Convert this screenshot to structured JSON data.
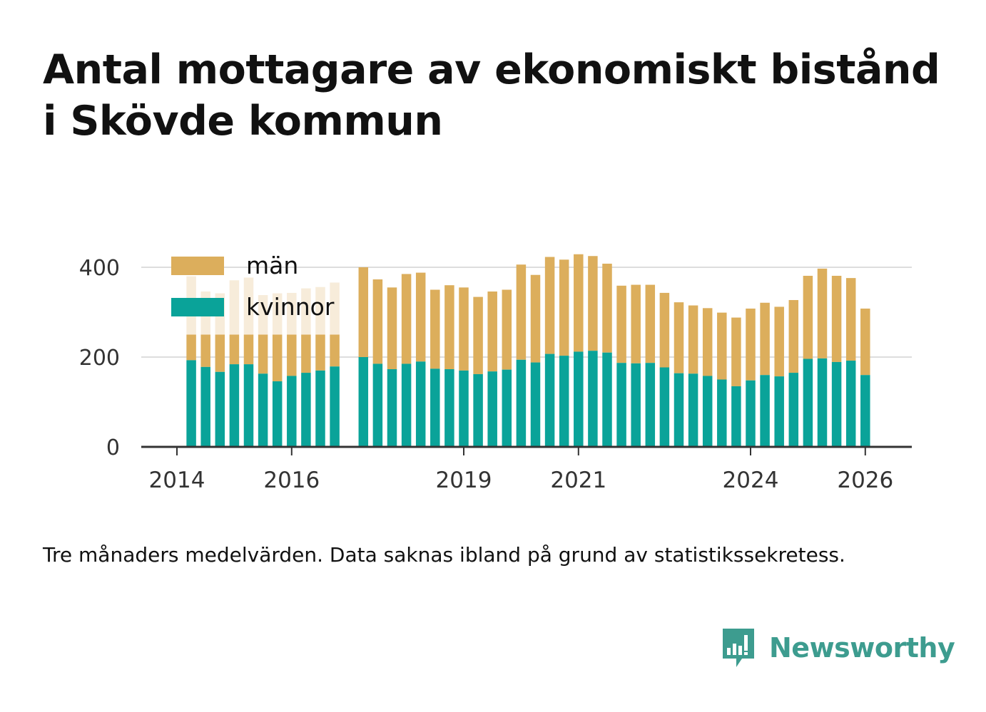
{
  "title": "Antal mottagare av ekonomiskt bistånd i Skövde kommun",
  "note": "Tre månaders medelvärden. Data saknas ibland på grund av statistikssekretess.",
  "brand": {
    "name": "Newsworthy",
    "icon": "newsworthy-logo-icon"
  },
  "colors": {
    "man": "#dcae5c",
    "kvinnor": "#0aa399",
    "faded": "#f7ecda",
    "grid": "#dddddd",
    "axis": "#333333"
  },
  "chart_data": {
    "type": "bar",
    "stacked": true,
    "title": "Antal mottagare av ekonomiskt bistånd i Skövde kommun",
    "xlabel": "",
    "ylabel": "",
    "ylim": [
      0,
      400
    ],
    "yticks": [
      0,
      200,
      400
    ],
    "xlim": [
      2014.0,
      2026.5
    ],
    "xticks": [
      2014,
      2016,
      2019,
      2021,
      2024,
      2026
    ],
    "legend": {
      "position": "top-left",
      "entries": [
        "män",
        "kvinnor"
      ]
    },
    "x": [
      2014.25,
      2014.5,
      2014.75,
      2015.0,
      2015.25,
      2015.5,
      2015.75,
      2016.0,
      2016.25,
      2016.5,
      2016.75,
      2017.25,
      2017.5,
      2017.75,
      2018.0,
      2018.25,
      2018.5,
      2018.75,
      2019.0,
      2019.25,
      2019.5,
      2019.75,
      2020.0,
      2020.25,
      2020.5,
      2020.75,
      2021.0,
      2021.25,
      2021.5,
      2021.75,
      2022.0,
      2022.25,
      2022.5,
      2022.75,
      2023.0,
      2023.25,
      2023.5,
      2023.75,
      2024.0,
      2024.25,
      2024.5,
      2024.75,
      2025.0,
      2025.25,
      2025.5,
      2025.75,
      2026.0
    ],
    "series": [
      {
        "name": "kvinnor",
        "values": [
          193,
          178,
          167,
          184,
          184,
          163,
          146,
          158,
          165,
          170,
          179,
          200,
          185,
          173,
          185,
          190,
          174,
          173,
          170,
          162,
          168,
          172,
          194,
          188,
          207,
          203,
          212,
          214,
          210,
          187,
          186,
          187,
          177,
          164,
          163,
          158,
          150,
          135,
          148,
          160,
          157,
          165,
          196,
          197,
          189,
          192,
          160
        ]
      },
      {
        "name": "män",
        "values": [
          187,
          168,
          175,
          187,
          193,
          175,
          196,
          185,
          188,
          186,
          187,
          200,
          188,
          182,
          200,
          198,
          176,
          187,
          185,
          172,
          178,
          178,
          212,
          195,
          216,
          214,
          217,
          211,
          198,
          172,
          175,
          174,
          166,
          158,
          152,
          151,
          149,
          153,
          160,
          161,
          155,
          162,
          185,
          200,
          192,
          184,
          148
        ]
      }
    ],
    "suppressed_men": [
      true,
      true,
      true,
      true,
      true,
      true,
      true,
      true,
      true,
      true,
      true,
      false,
      false,
      false,
      false,
      false,
      false,
      false,
      false,
      false,
      false,
      false,
      false,
      false,
      false,
      false,
      false,
      false,
      false,
      false,
      false,
      false,
      false,
      false,
      false,
      false,
      false,
      false,
      false,
      false,
      false,
      false,
      false,
      false,
      false,
      false,
      false
    ],
    "suppressed_men_level": 250
  }
}
